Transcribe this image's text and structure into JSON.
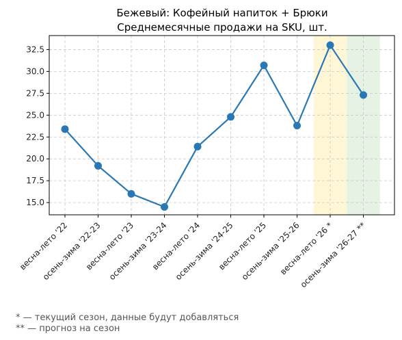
{
  "chart_data": {
    "type": "line",
    "title": "Бежевый: Кофейный напиток + Брюки",
    "subtitle": "Среднемесячные продажи на SKU, шт.",
    "xlabel": "",
    "ylabel": "",
    "categories": [
      "весна-лето '22",
      "осень-зима '22-23",
      "весна-лето '23",
      "осень-зима '23-24",
      "весна-лето '24",
      "осень-зима '24-25",
      "весна-лето '25",
      "осень-зима '25-26",
      "весна-лето '26 *",
      "осень-зима '26-27 **"
    ],
    "values": [
      23.4,
      19.2,
      16.0,
      14.5,
      21.4,
      24.8,
      30.7,
      23.8,
      33.0,
      27.3
    ],
    "ylim": [
      13.6,
      34.1
    ],
    "yticks": [
      15.0,
      17.5,
      20.0,
      22.5,
      25.0,
      27.5,
      30.0,
      32.5
    ],
    "ytick_labels": [
      "15.0",
      "17.5",
      "20.0",
      "22.5",
      "25.0",
      "27.5",
      "30.0",
      "32.5"
    ],
    "grid": true,
    "line_color": "#2878b5",
    "highlights": [
      {
        "category": "весна-лето '26 *",
        "meaning": "current season",
        "color": "#fff6d6"
      },
      {
        "category": "осень-зима '26-27 **",
        "meaning": "forecast",
        "color": "#e6f2e3"
      }
    ]
  },
  "footnotes": [
    "* — текущий сезон, данные будут добавляться",
    "** — прогноз на сезон"
  ]
}
